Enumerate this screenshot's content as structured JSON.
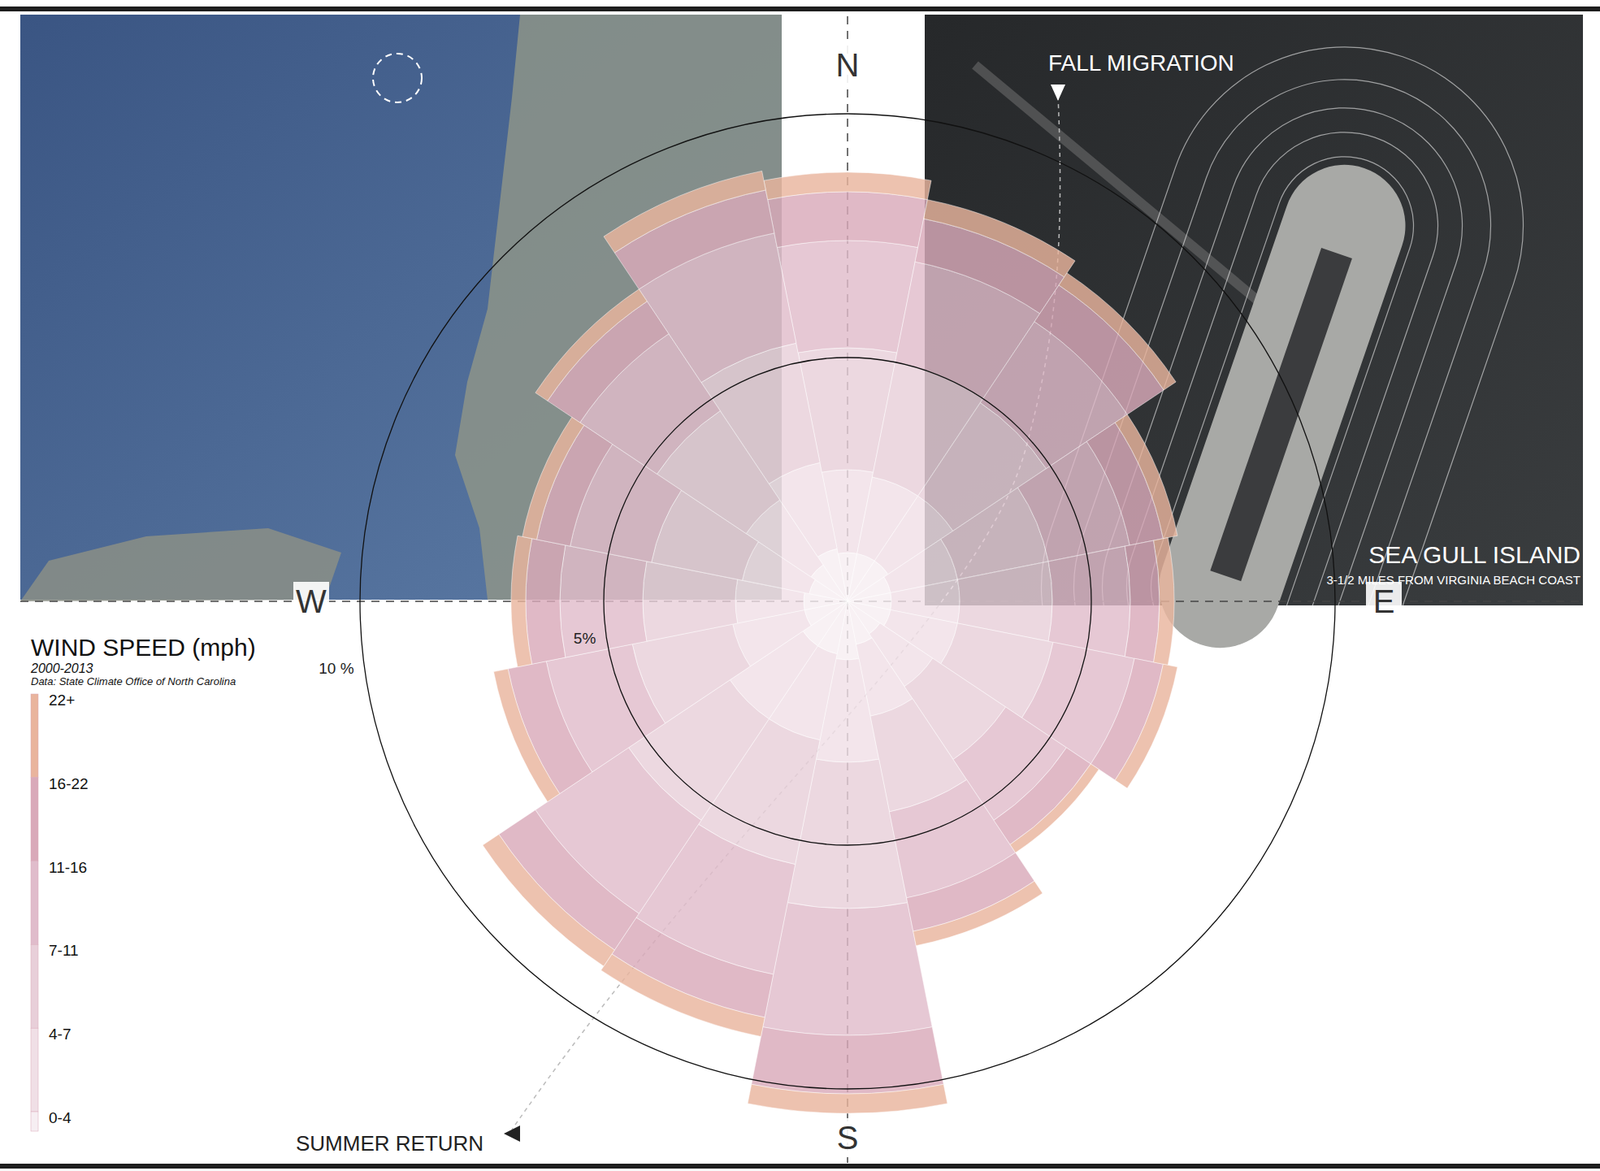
{
  "chart_data": {
    "type": "windrose",
    "title": "WIND SPEED (mph)",
    "subtitle": "2000-2013",
    "annotations": [
      "Data: State Climate Office of North Carolina",
      "FALL MIGRATION",
      "SUMMER RETURN",
      "SEA GULL ISLAND",
      "3-1/2 MILES FROM VIRGINIA BEACH COAST"
    ],
    "categories": [
      "N",
      null,
      null,
      null,
      "E",
      null,
      null,
      null,
      "S",
      null,
      null,
      null,
      "W",
      null,
      null,
      null
    ],
    "ylim": [
      0,
      11
    ],
    "yticks": [
      {
        "value": 5,
        "label": "5%"
      },
      {
        "value": 10,
        "label": "10 %"
      }
    ],
    "stacked": true,
    "legend": "left",
    "series": [
      {
        "name": "0-4",
        "color": "#f6eef2",
        "values": [
          1.0,
          1.0,
          1.0,
          0.9,
          0.9,
          0.9,
          0.8,
          0.9,
          1.2,
          1.1,
          1.1,
          0.9,
          0.9,
          0.8,
          0.9,
          1.1
        ]
      },
      {
        "name": "4-7",
        "color": "#f0dfe6",
        "values": [
          1.7,
          1.6,
          1.6,
          1.4,
          1.4,
          1.4,
          1.3,
          1.5,
          2.1,
          1.8,
          1.8,
          1.5,
          1.4,
          1.4,
          1.6,
          1.8
        ]
      },
      {
        "name": "7-11",
        "color": "#e8cfd9",
        "values": [
          2.5,
          2.4,
          2.3,
          1.9,
          1.9,
          2.0,
          1.8,
          2.0,
          3.0,
          2.6,
          2.5,
          2.1,
          1.9,
          1.9,
          2.2,
          2.5
        ]
      },
      {
        "name": "11-16",
        "color": "#e0bccb",
        "values": [
          2.2,
          2.1,
          2.0,
          1.7,
          1.6,
          1.7,
          1.5,
          1.8,
          2.6,
          2.3,
          2.3,
          1.8,
          1.7,
          1.7,
          1.9,
          2.3
        ]
      },
      {
        "name": "16-22",
        "color": "#d9a9b9",
        "values": [
          1.0,
          0.9,
          0.9,
          0.7,
          0.6,
          0.6,
          0.6,
          0.7,
          1.2,
          0.9,
          0.9,
          0.8,
          0.7,
          0.7,
          0.8,
          0.9
        ]
      },
      {
        "name": "22+",
        "color": "#e9b49d",
        "values": [
          0.4,
          0.4,
          0.3,
          0.3,
          0.3,
          0.3,
          0.2,
          0.3,
          0.4,
          0.4,
          0.4,
          0.3,
          0.3,
          0.3,
          0.3,
          0.4
        ]
      }
    ]
  }
}
